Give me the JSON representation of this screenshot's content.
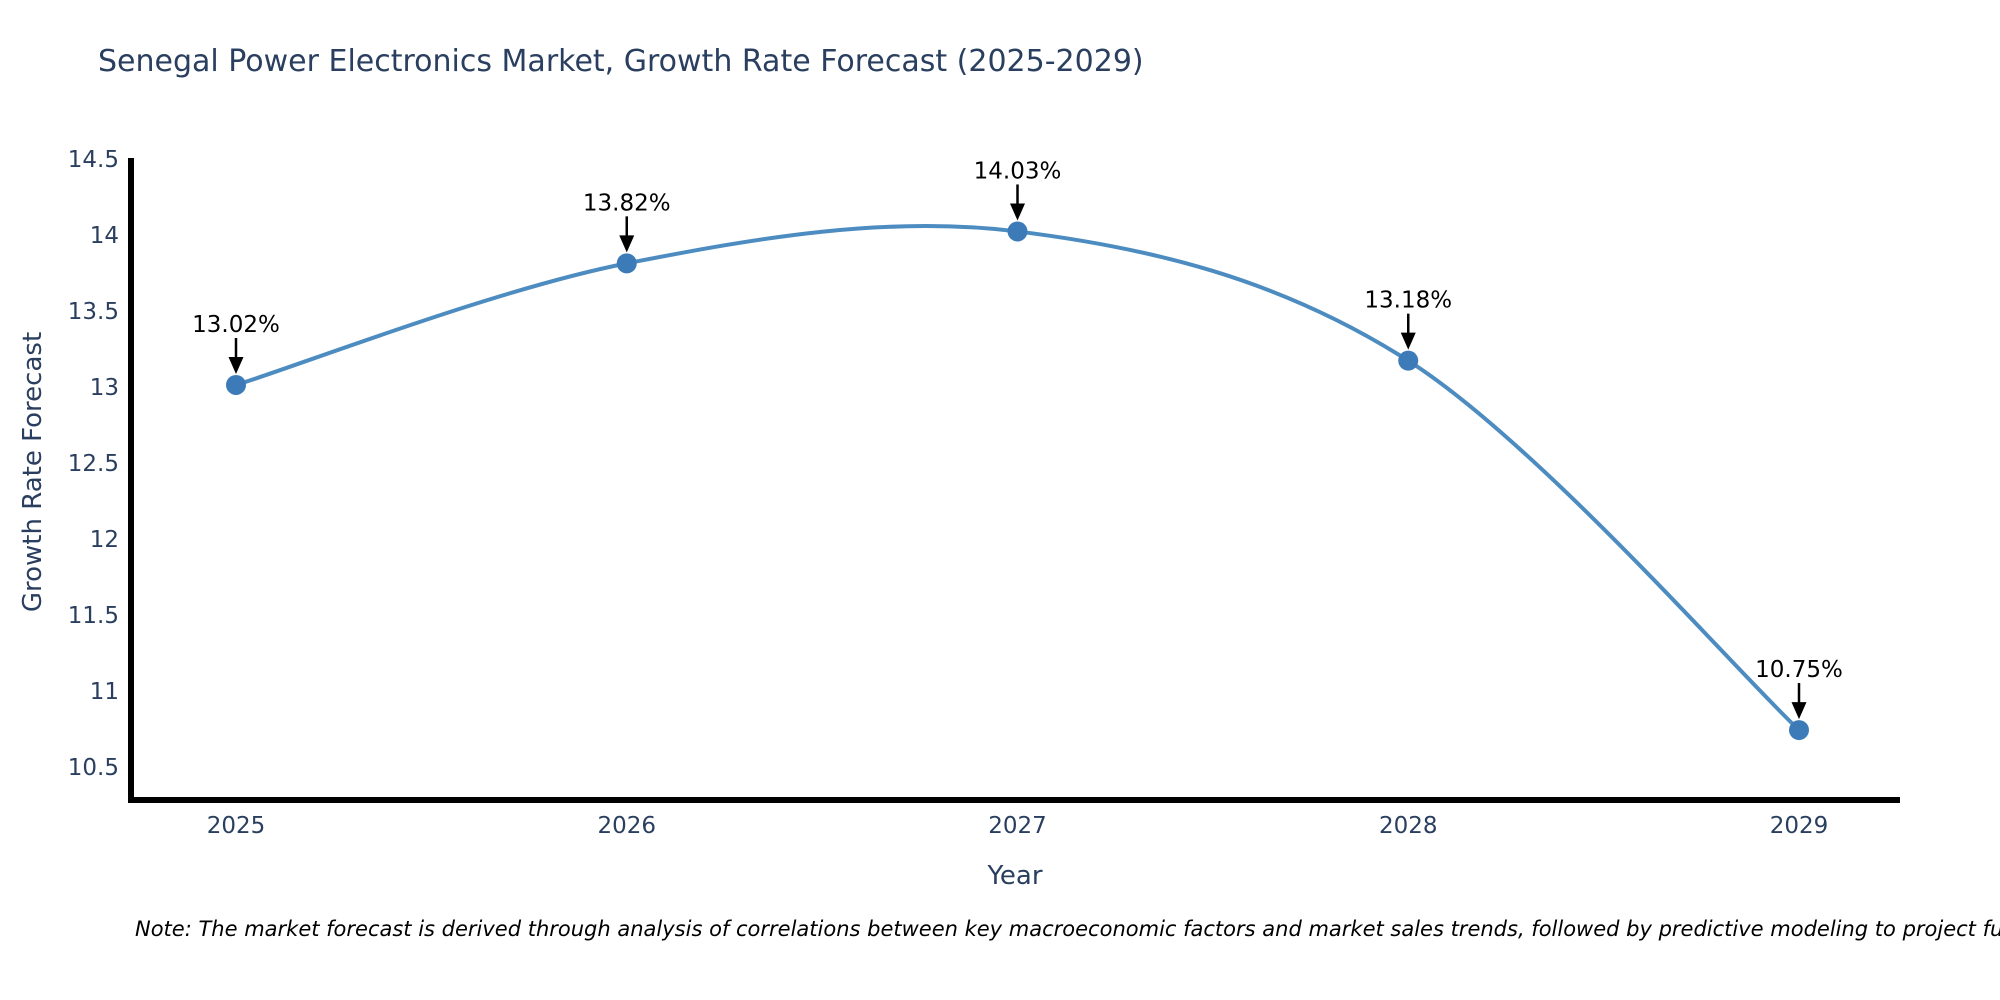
{
  "chart_data": {
    "type": "line",
    "line_shape": "spline",
    "title": "Senegal Power Electronics Market, Growth Rate Forecast (2025-2029)",
    "xlabel": "Year",
    "ylabel": "Growth Rate Forecast",
    "x": [
      2025,
      2026,
      2027,
      2028,
      2029
    ],
    "series": [
      {
        "name": "Growth Rate Forecast",
        "values": [
          13.02,
          13.82,
          14.03,
          13.18,
          10.75
        ]
      }
    ],
    "point_labels": [
      "13.02%",
      "13.82%",
      "14.03%",
      "13.18%",
      "10.75%"
    ],
    "ylim": [
      10.29,
      14.5
    ],
    "yticks": [
      10.5,
      11,
      11.5,
      12,
      12.5,
      13,
      13.5,
      14,
      14.5
    ],
    "grid": false,
    "legend_position": "none",
    "colors": {
      "line": "#4d8cc0",
      "marker": "#3d7bb8",
      "axis_line": "#000000",
      "axis_text": "#2a3f5f",
      "annotation_text": "#000000",
      "background": "#ffffff"
    }
  },
  "note": "Note: The market forecast is derived through analysis of correlations between key macroeconomic factors and market sales trends, followed by predictive modeling to project future sal"
}
